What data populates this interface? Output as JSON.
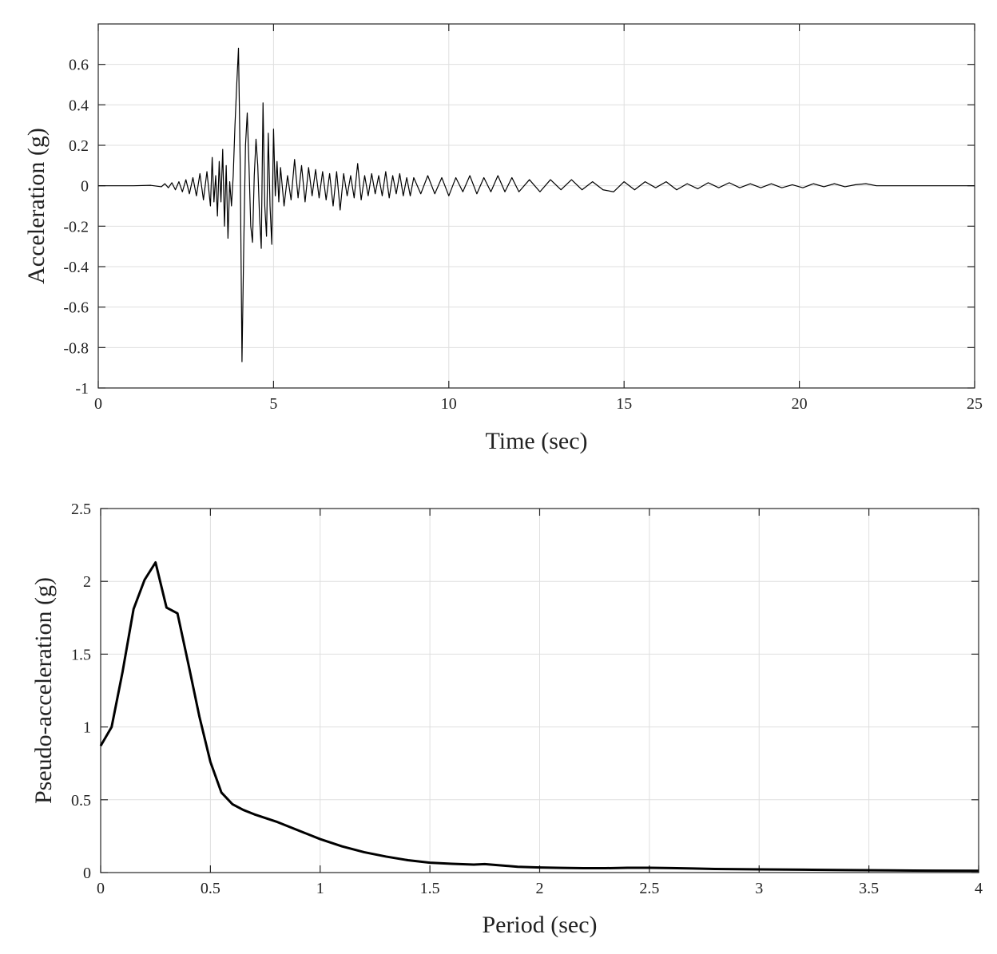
{
  "chart_data": [
    {
      "type": "line",
      "xlabel": "Time (sec)",
      "ylabel": "Acceleration (g)",
      "xlim": [
        0,
        25
      ],
      "ylim": [
        -1,
        0.8
      ],
      "xticks": [
        0,
        5,
        10,
        15,
        20,
        25
      ],
      "xtick_labels": [
        "0",
        "5",
        "10",
        "15",
        "20",
        "25"
      ],
      "yticks": [
        -1,
        -0.8,
        -0.6,
        -0.4,
        -0.2,
        0,
        0.2,
        0.4,
        0.6
      ],
      "ytick_labels": [
        "-1",
        "-0.8",
        "-0.6",
        "-0.4",
        "-0.2",
        "0",
        "0.2",
        "0.4",
        "0.6"
      ],
      "grid": true,
      "color": "#000000",
      "series": [
        {
          "x": [
            0,
            1.0,
            1.5,
            1.8,
            1.9,
            2.0,
            2.1,
            2.2,
            2.3,
            2.4,
            2.5,
            2.6,
            2.7,
            2.8,
            2.9,
            3.0,
            3.1,
            3.2,
            3.25,
            3.3,
            3.35,
            3.4,
            3.45,
            3.5,
            3.55,
            3.6,
            3.65,
            3.7,
            3.75,
            3.8,
            3.85,
            3.9,
            3.95,
            4.0,
            4.05,
            4.1,
            4.15,
            4.2,
            4.25,
            4.3,
            4.35,
            4.4,
            4.45,
            4.5,
            4.55,
            4.6,
            4.65,
            4.7,
            4.75,
            4.8,
            4.85,
            4.9,
            4.95,
            5.0,
            5.05,
            5.1,
            5.15,
            5.2,
            5.3,
            5.4,
            5.5,
            5.6,
            5.7,
            5.8,
            5.9,
            6.0,
            6.1,
            6.2,
            6.3,
            6.4,
            6.5,
            6.6,
            6.7,
            6.8,
            6.9,
            7.0,
            7.1,
            7.2,
            7.3,
            7.4,
            7.5,
            7.6,
            7.7,
            7.8,
            7.9,
            8.0,
            8.1,
            8.2,
            8.3,
            8.4,
            8.5,
            8.6,
            8.7,
            8.8,
            8.9,
            9.0,
            9.2,
            9.4,
            9.6,
            9.8,
            10.0,
            10.2,
            10.4,
            10.6,
            10.8,
            11.0,
            11.2,
            11.4,
            11.6,
            11.8,
            12.0,
            12.3,
            12.6,
            12.9,
            13.2,
            13.5,
            13.8,
            14.1,
            14.4,
            14.7,
            15.0,
            15.3,
            15.6,
            15.9,
            16.2,
            16.5,
            16.8,
            17.1,
            17.4,
            17.7,
            18.0,
            18.3,
            18.6,
            18.9,
            19.2,
            19.5,
            19.8,
            20.1,
            20.4,
            20.7,
            21.0,
            21.3,
            21.6,
            21.9,
            22.2,
            25.0
          ],
          "y": [
            0,
            0,
            0.002,
            -0.005,
            0.01,
            -0.01,
            0.015,
            -0.02,
            0.02,
            -0.03,
            0.03,
            -0.04,
            0.04,
            -0.05,
            0.06,
            -0.07,
            0.07,
            -0.1,
            0.14,
            -0.08,
            0.05,
            -0.15,
            0.12,
            -0.08,
            0.18,
            -0.2,
            0.1,
            -0.26,
            0.02,
            -0.1,
            0.05,
            0.3,
            0.5,
            0.68,
            0.1,
            -0.87,
            -0.3,
            0.2,
            0.36,
            0.1,
            -0.2,
            -0.28,
            0.05,
            0.23,
            0.1,
            -0.15,
            -0.31,
            0.41,
            -0.1,
            -0.25,
            0.26,
            -0.1,
            -0.29,
            0.28,
            -0.05,
            0.12,
            -0.08,
            0.09,
            -0.1,
            0.05,
            -0.07,
            0.13,
            -0.06,
            0.1,
            -0.08,
            0.09,
            -0.05,
            0.08,
            -0.06,
            0.07,
            -0.07,
            0.06,
            -0.1,
            0.07,
            -0.12,
            0.06,
            -0.05,
            0.05,
            -0.06,
            0.11,
            -0.07,
            0.05,
            -0.05,
            0.06,
            -0.04,
            0.05,
            -0.05,
            0.07,
            -0.06,
            0.05,
            -0.04,
            0.06,
            -0.05,
            0.04,
            -0.05,
            0.04,
            -0.04,
            0.05,
            -0.04,
            0.04,
            -0.05,
            0.04,
            -0.03,
            0.05,
            -0.04,
            0.04,
            -0.03,
            0.05,
            -0.03,
            0.04,
            -0.03,
            0.03,
            -0.03,
            0.03,
            -0.02,
            0.03,
            -0.02,
            0.02,
            -0.02,
            -0.03,
            0.02,
            -0.02,
            0.02,
            -0.01,
            0.02,
            -0.02,
            0.01,
            -0.015,
            0.015,
            -0.01,
            0.015,
            -0.01,
            0.01,
            -0.01,
            0.01,
            -0.01,
            0.005,
            -0.01,
            0.01,
            -0.005,
            0.01,
            -0.005,
            0.005,
            0.01,
            0,
            0
          ]
        }
      ]
    },
    {
      "type": "line",
      "xlabel": "Period (sec)",
      "ylabel": "Pseudo-acceleration (g)",
      "xlim": [
        0,
        4
      ],
      "ylim": [
        0,
        2.5
      ],
      "xticks": [
        0,
        0.5,
        1,
        1.5,
        2,
        2.5,
        3,
        3.5,
        4
      ],
      "xtick_labels": [
        "0",
        "0.5",
        "1",
        "1.5",
        "2",
        "2.5",
        "3",
        "3.5",
        "4"
      ],
      "yticks": [
        0,
        0.5,
        1,
        1.5,
        2,
        2.5
      ],
      "ytick_labels": [
        "0",
        "0.5",
        "1",
        "1.5",
        "2",
        "2.5"
      ],
      "grid": true,
      "color": "#000000",
      "series": [
        {
          "x": [
            0,
            0.05,
            0.1,
            0.15,
            0.2,
            0.25,
            0.3,
            0.35,
            0.4,
            0.45,
            0.5,
            0.55,
            0.6,
            0.65,
            0.7,
            0.8,
            0.9,
            1.0,
            1.1,
            1.2,
            1.3,
            1.4,
            1.5,
            1.6,
            1.7,
            1.75,
            1.8,
            1.9,
            2.0,
            2.1,
            2.2,
            2.3,
            2.4,
            2.5,
            2.6,
            2.7,
            2.8,
            3.0,
            3.2,
            3.4,
            3.6,
            3.8,
            4.0
          ],
          "y": [
            0.87,
            1.0,
            1.38,
            1.81,
            2.01,
            2.13,
            1.82,
            1.78,
            1.43,
            1.07,
            0.76,
            0.55,
            0.47,
            0.43,
            0.4,
            0.35,
            0.29,
            0.23,
            0.18,
            0.14,
            0.11,
            0.085,
            0.068,
            0.06,
            0.055,
            0.058,
            0.052,
            0.04,
            0.035,
            0.032,
            0.03,
            0.03,
            0.033,
            0.033,
            0.031,
            0.028,
            0.025,
            0.022,
            0.02,
            0.017,
            0.015,
            0.013,
            0.012
          ]
        }
      ]
    }
  ]
}
